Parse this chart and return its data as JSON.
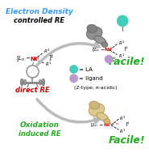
{
  "bg_color": "#ffffff",
  "electron_density_text": "Electron Density",
  "controlled_re_text": "controlled RE",
  "direct_re_text": "direct RE",
  "oxidation_text": "Oxidation",
  "induced_re_text": "induced RE",
  "facile1_text": "Facile!",
  "facile2_text": "Facile!",
  "la_text": "= LA",
  "ligand_text": "= ligand",
  "z_type_text": "(Z-type, π-acidic)",
  "ni_color": "#cc0000",
  "electron_density_color": "#3399ff",
  "direct_re_color": "#cc0000",
  "oxidation_color": "#22aa22",
  "facile_color": "#22aa22",
  "arrow_color": "#bbbbbb",
  "teal_color": "#44ccbb",
  "purple_color": "#bb99cc",
  "figsize": [
    1.85,
    1.89
  ],
  "dpi": 100
}
